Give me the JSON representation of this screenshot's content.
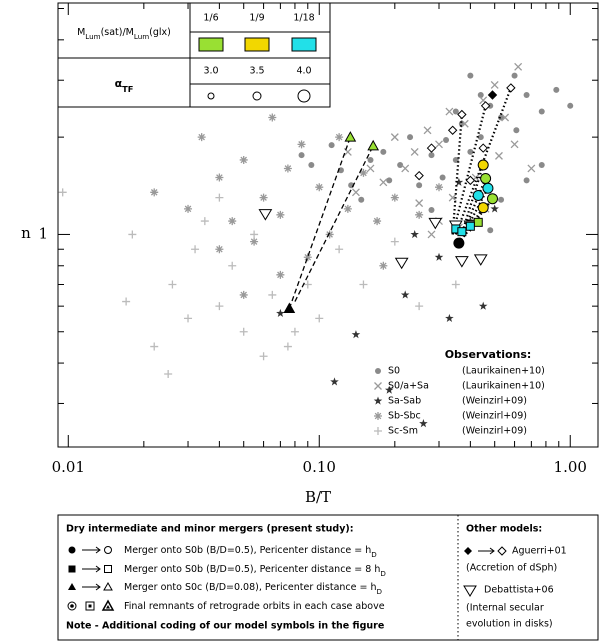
{
  "chart_data": {
    "type": "scatter",
    "xlabel": "B/T",
    "ylabel": "n",
    "log_x": true,
    "log_y": true,
    "xlim": [
      0.0091,
      1.29
    ],
    "ylim": [
      0.22,
      5.2
    ],
    "xticks": [
      0.01,
      {
        "value": 0.1,
        "label": "0.10"
      },
      {
        "value": 1,
        "label": "1.00"
      }
    ],
    "xminorticks": [
      0.02,
      0.03,
      0.04,
      0.05,
      0.06,
      0.07,
      0.08,
      0.09,
      0.2,
      0.3,
      0.4,
      0.5,
      0.6,
      0.7,
      0.8,
      0.9
    ],
    "yticks": [
      1
    ],
    "yminorticks": [
      0.3,
      0.4,
      0.5,
      0.6,
      0.7,
      0.8,
      0.9,
      2,
      3,
      4,
      5
    ],
    "legend_title": "Observations:",
    "series": [
      {
        "name": "S0",
        "reference": "(Laurikainen+10)",
        "marker": "dot",
        "color": "#8a8a8a",
        "x": [
          1.0,
          0.88,
          0.77,
          0.67,
          0.61,
          0.53,
          0.48,
          0.44,
          0.4,
          0.37,
          0.35,
          0.32,
          0.31,
          0.28,
          0.25,
          0.23,
          0.21,
          0.19,
          0.18,
          0.16,
          0.147,
          0.134,
          0.122,
          0.112,
          0.093,
          0.085,
          0.4,
          0.67,
          0.77,
          0.53,
          0.48,
          0.28,
          0.6,
          0.44,
          0.35
        ],
        "values": [
          2.5,
          2.8,
          2.4,
          2.7,
          2.1,
          2.3,
          2.5,
          2.0,
          1.8,
          2.2,
          1.7,
          1.96,
          1.5,
          1.76,
          1.42,
          2.0,
          1.64,
          1.47,
          1.8,
          1.7,
          1.28,
          1.42,
          1.58,
          1.89,
          1.64,
          1.76,
          3.1,
          1.47,
          1.64,
          1.28,
          1.03,
          1.19,
          3.1,
          2.7,
          2.4
        ]
      },
      {
        "name": "S0/a+Sa",
        "reference": "(Laurikainen+10)",
        "marker": "x",
        "color": "#9a9a9a",
        "x": [
          0.62,
          0.5,
          0.45,
          0.55,
          0.38,
          0.33,
          0.3,
          0.27,
          0.24,
          0.22,
          0.2,
          0.18,
          0.16,
          0.14,
          0.13,
          0.3,
          0.34,
          0.28,
          0.42,
          0.6,
          0.7,
          0.25,
          0.36,
          0.46,
          0.52
        ],
        "values": [
          3.3,
          2.9,
          2.6,
          2.3,
          2.2,
          2.4,
          1.9,
          2.1,
          1.8,
          1.6,
          2.0,
          1.45,
          1.6,
          1.35,
          1.8,
          1.1,
          1.3,
          1.0,
          1.5,
          1.9,
          1.6,
          1.25,
          1.05,
          1.2,
          1.75
        ]
      },
      {
        "name": "Sa-Sab",
        "reference": "(Weinzirl+09)",
        "marker": "star",
        "color": "#333333",
        "x": [
          0.07,
          0.115,
          0.19,
          0.26,
          0.14,
          0.3,
          0.33,
          0.45,
          0.5,
          0.36,
          0.24,
          0.22,
          0.4
        ],
        "values": [
          0.57,
          0.35,
          0.33,
          0.26,
          0.49,
          0.85,
          0.55,
          0.6,
          1.2,
          1.45,
          1.0,
          0.65,
          1.1
        ]
      },
      {
        "name": "Sb-Sbc",
        "reference": "(Weinzirl+09)",
        "marker": "asterisk",
        "color": "#999999",
        "x": [
          0.022,
          0.03,
          0.034,
          0.04,
          0.045,
          0.05,
          0.055,
          0.06,
          0.065,
          0.07,
          0.075,
          0.085,
          0.09,
          0.1,
          0.11,
          0.12,
          0.13,
          0.15,
          0.17,
          0.2,
          0.07,
          0.05,
          0.18,
          0.25,
          0.3,
          0.04
        ],
        "values": [
          1.35,
          1.2,
          2.0,
          1.5,
          1.1,
          1.7,
          0.95,
          1.3,
          2.3,
          1.15,
          1.6,
          1.9,
          0.85,
          1.4,
          1.0,
          2.0,
          1.2,
          1.55,
          1.1,
          1.3,
          0.75,
          0.65,
          0.8,
          1.15,
          1.4,
          0.9
        ]
      },
      {
        "name": "Sc-Sm",
        "reference": "(Weinzirl+09)",
        "marker": "plus",
        "color": "#bbbbbb",
        "x": [
          0.0095,
          0.017,
          0.018,
          0.022,
          0.025,
          0.026,
          0.03,
          0.032,
          0.035,
          0.04,
          0.045,
          0.05,
          0.055,
          0.06,
          0.065,
          0.08,
          0.09,
          0.1,
          0.12,
          0.15,
          0.2,
          0.25,
          0.35,
          0.04,
          0.075
        ],
        "values": [
          1.35,
          0.62,
          1.0,
          0.45,
          0.37,
          0.7,
          0.55,
          0.9,
          1.1,
          0.6,
          0.8,
          0.5,
          1.0,
          0.42,
          0.65,
          0.5,
          0.7,
          0.55,
          0.9,
          0.7,
          0.95,
          0.6,
          0.7,
          1.3,
          0.45
        ]
      }
    ],
    "tracks": [
      {
        "style": "dashed",
        "x": [
          0.076,
          0.133
        ],
        "y": [
          0.59,
          2.0
        ]
      },
      {
        "style": "dashed",
        "x": [
          0.08,
          0.164
        ],
        "y": [
          0.62,
          1.88
        ]
      },
      {
        "style": "dotted",
        "x": [
          0.36,
          0.45
        ],
        "y": [
          0.94,
          1.64
        ]
      },
      {
        "style": "dotted",
        "x": [
          0.36,
          0.46
        ],
        "y": [
          0.94,
          1.49
        ]
      },
      {
        "style": "dotted",
        "x": [
          0.36,
          0.47
        ],
        "y": [
          0.94,
          1.39
        ]
      },
      {
        "style": "dotted",
        "x": [
          0.36,
          0.49
        ],
        "y": [
          0.94,
          1.29
        ]
      },
      {
        "style": "dotted",
        "x": [
          0.36,
          0.45
        ],
        "y": [
          0.94,
          1.21
        ]
      },
      {
        "style": "dotted",
        "x": [
          0.34,
          0.46
        ],
        "y": [
          1.0,
          2.5
        ]
      },
      {
        "style": "dotted",
        "x": [
          0.34,
          0.37
        ],
        "y": [
          1.0,
          2.35
        ]
      },
      {
        "style": "dotted",
        "x": [
          0.35,
          0.58
        ],
        "y": [
          1.0,
          2.84
        ]
      }
    ],
    "model_points": [
      {
        "marker": "triangle",
        "color": "#000000",
        "x": 0.076,
        "y": 0.59
      },
      {
        "marker": "triangle",
        "color": "#99e033",
        "x": 0.133,
        "y": 2.0
      },
      {
        "marker": "triangle",
        "color": "#99e033",
        "x": 0.164,
        "y": 1.88
      },
      {
        "marker": "invtriangle",
        "color": "#ffffff",
        "x": 0.061,
        "y": 1.16
      },
      {
        "marker": "invtriangle",
        "color": "#ffffff",
        "x": 0.29,
        "y": 1.09
      },
      {
        "marker": "invtriangle",
        "color": "#ffffff",
        "x": 0.213,
        "y": 0.82
      },
      {
        "marker": "invtriangle",
        "color": "#ffffff",
        "x": 0.37,
        "y": 0.83
      },
      {
        "marker": "invtriangle",
        "color": "#ffffff",
        "x": 0.44,
        "y": 0.84
      },
      {
        "marker": "invtriangle",
        "color": "#ffffff",
        "x": 0.4,
        "y": 1.07
      },
      {
        "marker": "invtriangle",
        "color": "#ffffff",
        "x": 0.35,
        "y": 1.07
      },
      {
        "marker": "diamond",
        "color": "#ffffff",
        "x": 0.45,
        "y": 1.85
      },
      {
        "marker": "diamond",
        "color": "#ffffff",
        "x": 0.37,
        "y": 2.35
      },
      {
        "marker": "diamond",
        "color": "#ffffff",
        "x": 0.28,
        "y": 1.85
      },
      {
        "marker": "diamond",
        "color": "#ffffff",
        "x": 0.58,
        "y": 2.84
      },
      {
        "marker": "diamond",
        "color": "#ffffff",
        "x": 0.46,
        "y": 2.5
      },
      {
        "marker": "diamond",
        "color": "#ffffff",
        "x": 0.34,
        "y": 2.1
      },
      {
        "marker": "diamond",
        "color": "#ffffff",
        "x": 0.25,
        "y": 1.52
      },
      {
        "marker": "diamond",
        "color": "#ffffff",
        "x": 0.4,
        "y": 1.47
      },
      {
        "marker": "diamond",
        "color": "#000000",
        "x": 0.49,
        "y": 2.7
      },
      {
        "marker": "square",
        "color": "#22e0e8",
        "x": 0.35,
        "y": 1.04
      },
      {
        "marker": "square",
        "color": "#22e0e8",
        "x": 0.37,
        "y": 1.02
      },
      {
        "marker": "square",
        "color": "#99e033",
        "x": 0.43,
        "y": 1.09
      },
      {
        "marker": "square",
        "color": "#22e0e8",
        "x": 0.4,
        "y": 1.06
      },
      {
        "marker": "circle",
        "color": "#000000",
        "x": 0.36,
        "y": 0.94
      },
      {
        "marker": "circle",
        "color": "#f2d700",
        "x": 0.45,
        "y": 1.64
      },
      {
        "marker": "circle",
        "color": "#99e033",
        "x": 0.46,
        "y": 1.49
      },
      {
        "marker": "circle",
        "color": "#22e0e8",
        "x": 0.47,
        "y": 1.39
      },
      {
        "marker": "circle",
        "color": "#99e033",
        "x": 0.49,
        "y": 1.29
      },
      {
        "marker": "circle",
        "color": "#f2d700",
        "x": 0.45,
        "y": 1.21
      },
      {
        "marker": "circle",
        "color": "#22e0e8",
        "x": 0.43,
        "y": 1.32
      }
    ],
    "inset": {
      "ratio_label": [
        {
          "text": "M"
        },
        {
          "text": "Lum",
          "sub": true
        },
        {
          "text": "(sat)/M"
        },
        {
          "text": "Lum",
          "sub": true
        },
        {
          "text": "(glx)"
        }
      ],
      "ratios": [
        "1/6",
        "1/9",
        "1/18"
      ],
      "ratio_colors": [
        "#99e033",
        "#f2d700",
        "#22e0e8"
      ],
      "alpha_label": [
        {
          "text": "α"
        },
        {
          "text": "TF",
          "sub": true
        }
      ],
      "alphas": [
        "3.0",
        "3.5",
        "4.0"
      ]
    }
  },
  "caption_box": {
    "title": "Dry intermediate and minor mergers (present study):",
    "rows": [
      [
        {
          "text": "Merger onto S0b (B/D=0.5), Pericenter distance = h"
        },
        {
          "text": "D",
          "sub": true
        }
      ],
      [
        {
          "text": "Merger onto S0b (B/D=0.5), Pericenter distance = 8 h"
        },
        {
          "text": "D",
          "sub": true
        }
      ],
      [
        {
          "text": "Merger onto S0c (B/D=0.08), Pericenter distance = h"
        },
        {
          "text": "D",
          "sub": true
        }
      ],
      [
        {
          "text": "Final remnants of retrograde orbits in each case above"
        }
      ]
    ],
    "note": "Note - Additional coding of our model symbols in the figure",
    "other_title": "Other models:",
    "other_1": "Aguerri+01",
    "other_1_desc": "(Accretion of dSph)",
    "other_2": "Debattista+06",
    "other_2_desc": [
      "(Internal secular",
      "evolution in disks)"
    ]
  }
}
